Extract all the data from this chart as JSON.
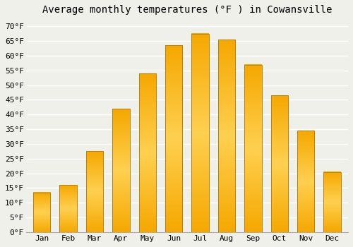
{
  "title": "Average monthly temperatures (°F ) in Cowansville",
  "months": [
    "Jan",
    "Feb",
    "Mar",
    "Apr",
    "May",
    "Jun",
    "Jul",
    "Aug",
    "Sep",
    "Oct",
    "Nov",
    "Dec"
  ],
  "values": [
    13.5,
    16.0,
    27.5,
    42.0,
    54.0,
    63.5,
    67.5,
    65.5,
    57.0,
    46.5,
    34.5,
    20.5
  ],
  "bar_color_bottom": "#F5A800",
  "bar_color_mid": "#FFD050",
  "bar_color_top": "#F5A800",
  "bar_edge_color": "#B8820A",
  "ylim": [
    0,
    72
  ],
  "yticks": [
    0,
    5,
    10,
    15,
    20,
    25,
    30,
    35,
    40,
    45,
    50,
    55,
    60,
    65,
    70
  ],
  "background_color": "#f0f0eb",
  "grid_color": "#ffffff",
  "title_fontsize": 10,
  "tick_fontsize": 8,
  "title_font": "monospace",
  "tick_font": "monospace"
}
